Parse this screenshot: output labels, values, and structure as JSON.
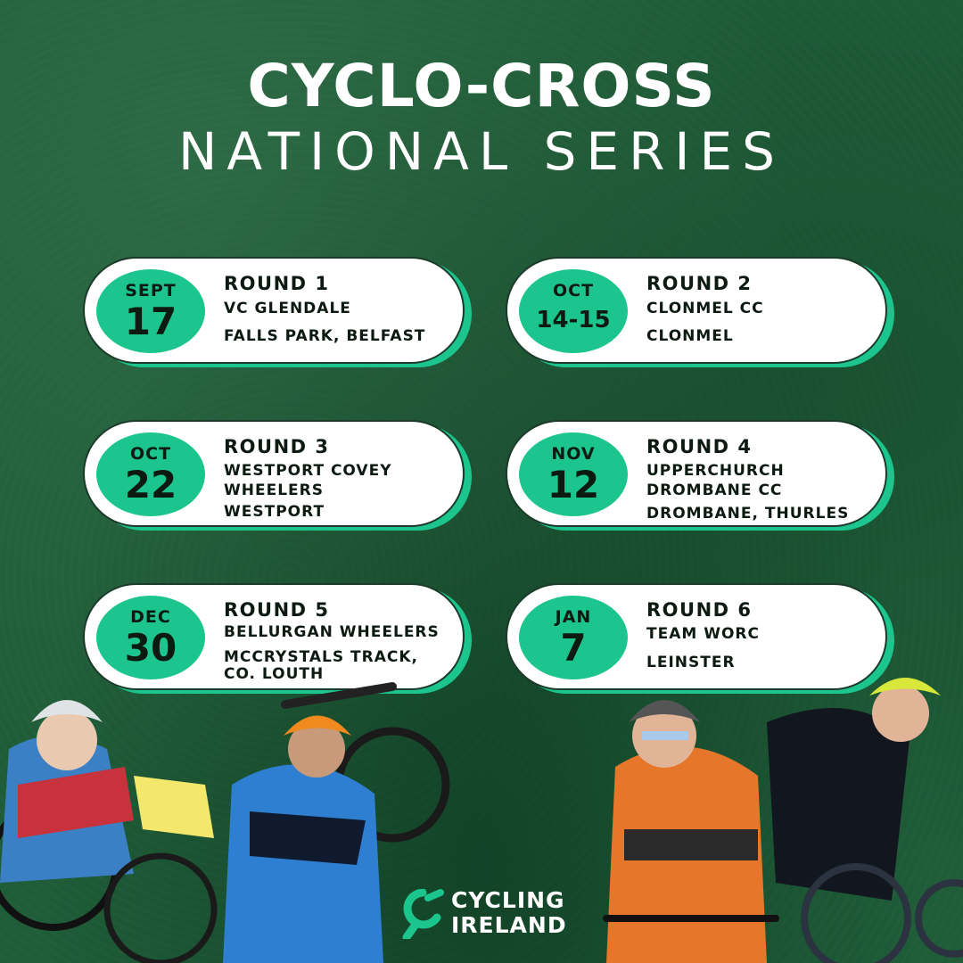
{
  "title": {
    "line1": "CYCLO-CROSS",
    "line2": "NATIONAL SERIES"
  },
  "accent_color": "#1cc58d",
  "rounds": [
    {
      "month": "SEPT",
      "day": "17",
      "round": "ROUND 1",
      "club": "VC GLENDALE",
      "venue": "FALLS PARK, BELFAST"
    },
    {
      "month": "OCT",
      "day": "14-15",
      "round": "ROUND 2",
      "club": "CLONMEL CC",
      "venue": "CLONMEL"
    },
    {
      "month": "OCT",
      "day": "22",
      "round": "ROUND 3",
      "club_line1": "WESTPORT COVEY",
      "club_line2": "WHEELERS",
      "venue": "WESTPORT"
    },
    {
      "month": "NOV",
      "day": "12",
      "round": "ROUND 4",
      "club_line1": "UPPERCHURCH",
      "club_line2": "DROMBANE CC",
      "venue": "DROMBANE, THURLES"
    },
    {
      "month": "DEC",
      "day": "30",
      "round": "ROUND 5",
      "club": "BELLURGAN WHEELERS",
      "venue_line1": "MCCRYSTALS TRACK,",
      "venue_line2": "CO. LOUTH"
    },
    {
      "month": "JAN",
      "day": "7",
      "round": "ROUND 6",
      "club": "TEAM WORC",
      "venue": "LEINSTER"
    }
  ],
  "logo": {
    "line1": "CYCLING",
    "line2": "IRELAND"
  }
}
